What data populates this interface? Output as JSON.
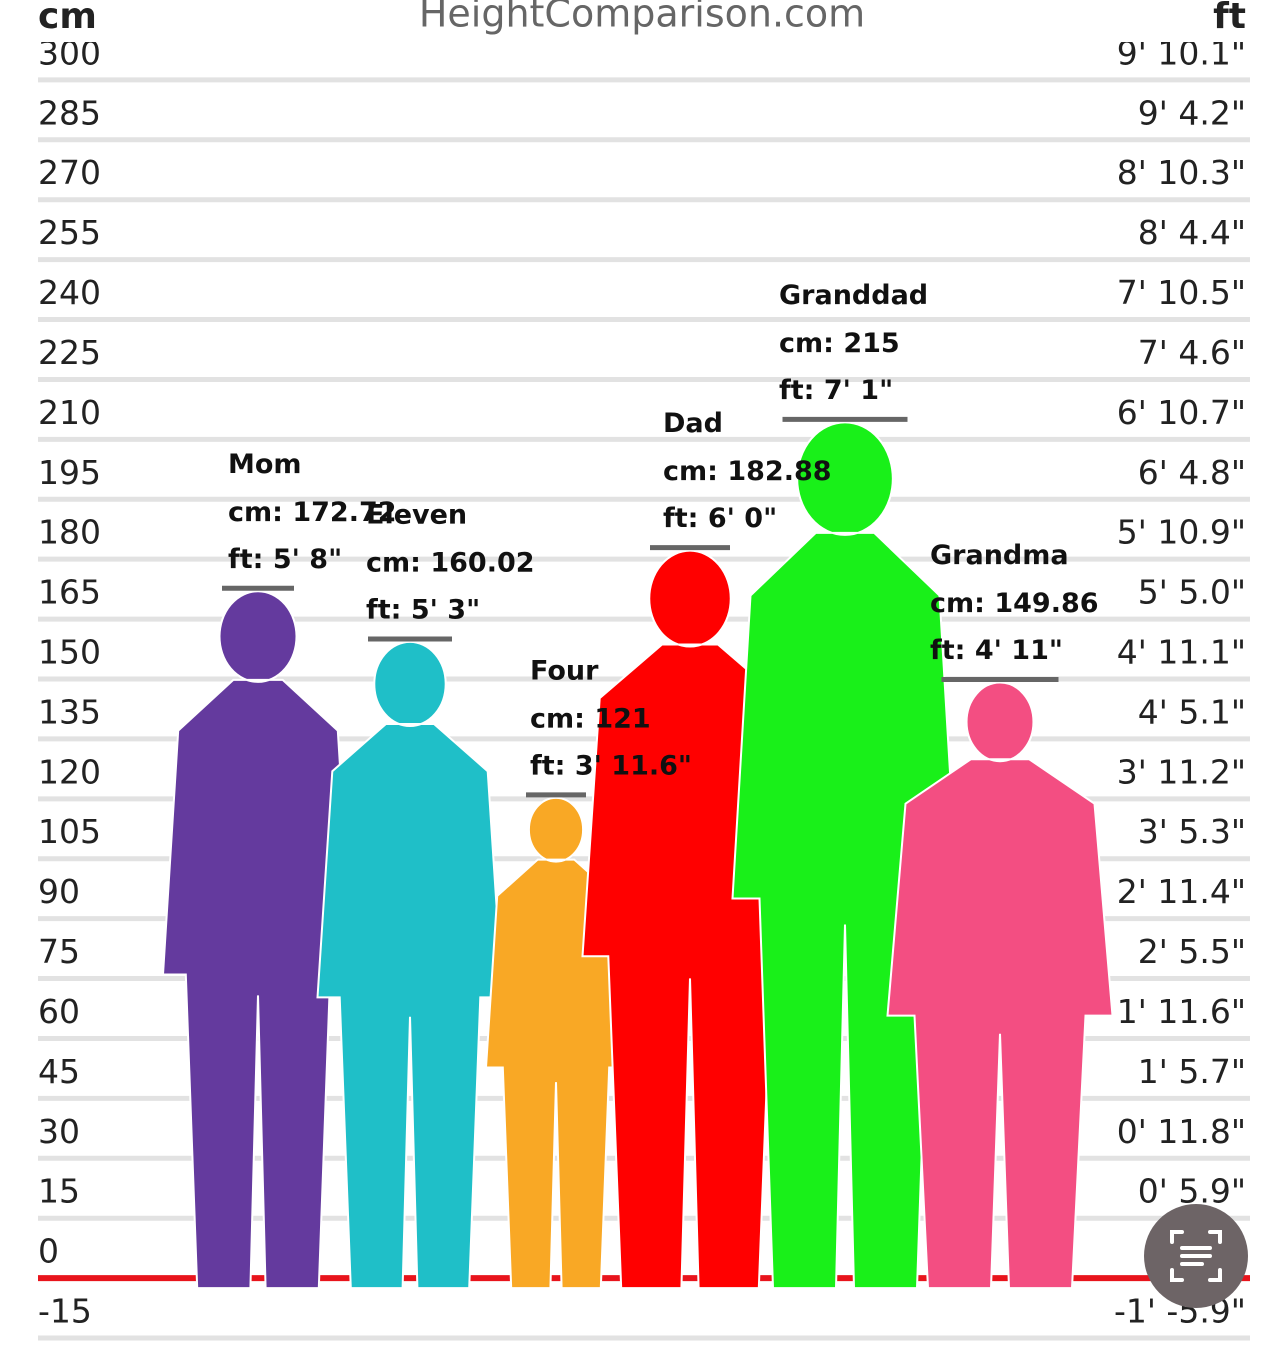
{
  "chart_data": {
    "type": "bar",
    "title": "HeightComparison.com",
    "y_label": "cm",
    "y2_label": "ft",
    "categories": [
      "Mom",
      "Eleven",
      "Four",
      "Dad",
      "Granddad",
      "Grandma"
    ],
    "values": [
      172.72,
      160.02,
      121,
      182.88,
      215,
      149.86
    ],
    "value_labels": [
      "cm: 172.72",
      "cm: 160.02",
      "cm: 121",
      "cm: 182.88",
      "cm: 215",
      "cm: 149.86"
    ],
    "ft_labels": [
      "ft: 5' 8\"",
      "ft: 5' 3\"",
      "ft: 3' 11.6\"",
      "ft: 6' 0\"",
      "ft: 7' 1\"",
      "ft: 4' 11\""
    ],
    "colors": [
      "#643a9e",
      "#1fbfc8",
      "#f9a825",
      "#ff0000",
      "#19f019",
      "#f34e82"
    ],
    "ylim": [
      -19,
      320
    ],
    "yticks": [
      -15,
      0,
      15,
      30,
      45,
      60,
      75,
      90,
      105,
      120,
      135,
      150,
      165,
      180,
      195,
      210,
      225,
      240,
      255,
      270,
      285,
      300
    ],
    "y2lim": [
      -7.48,
      125.98
    ],
    "y2ticks": [
      {
        "value": -5.91,
        "label": "-1' -5.9\""
      },
      {
        "value": 5.91,
        "label": "0' 5.9\""
      },
      {
        "value": 11.81,
        "label": "0' 11.8\""
      },
      {
        "value": 17.72,
        "label": "1' 5.7\""
      },
      {
        "value": 23.62,
        "label": "1' 11.6\""
      },
      {
        "value": 29.53,
        "label": "2' 5.5\""
      },
      {
        "value": 35.43,
        "label": "2' 11.4\""
      },
      {
        "value": 41.34,
        "label": "3' 5.3\""
      },
      {
        "value": 47.24,
        "label": "3' 11.2\""
      },
      {
        "value": 53.15,
        "label": "4' 5.1\""
      },
      {
        "value": 59.06,
        "label": "4' 11.1\""
      },
      {
        "value": 64.96,
        "label": "5' 5.0\""
      },
      {
        "value": 70.87,
        "label": "5' 10.9\""
      },
      {
        "value": 76.77,
        "label": "6' 4.8\""
      },
      {
        "value": 82.68,
        "label": "6' 10.7\""
      },
      {
        "value": 88.58,
        "label": "7' 4.6\""
      },
      {
        "value": 94.49,
        "label": "7' 10.5\""
      },
      {
        "value": 100.39,
        "label": "8' 4.4\""
      },
      {
        "value": 106.3,
        "label": "8' 10.3\""
      },
      {
        "value": 112.2,
        "label": "9' 4.2\""
      },
      {
        "value": 118.11,
        "label": "9' 10.1\""
      }
    ],
    "grid": true
  }
}
